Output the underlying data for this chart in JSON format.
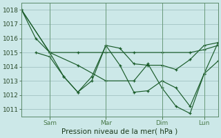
{
  "xlabel": "Pression niveau de la mer( hPa )",
  "background_color": "#cce8e8",
  "grid_color": "#99bbbb",
  "line_color": "#1a5c2a",
  "ylim": [
    1010.5,
    1018.5
  ],
  "yticks": [
    1011,
    1012,
    1013,
    1014,
    1015,
    1016,
    1017,
    1018
  ],
  "xlim": [
    0,
    168
  ],
  "xtick_positions": [
    24,
    72,
    120,
    156
  ],
  "xtick_labels": [
    "Sam",
    "Mar",
    "Dim",
    "Lun"
  ],
  "vline_positions": [
    24,
    72,
    120,
    156
  ],
  "line1_x": [
    0,
    24,
    48,
    72,
    96,
    120,
    144,
    156,
    168
  ],
  "line1_y": [
    1018.0,
    1015.0,
    1015.0,
    1015.0,
    1015.0,
    1015.0,
    1015.0,
    1015.2,
    1015.5
  ],
  "line2_x": [
    0,
    12,
    24,
    36,
    48,
    60,
    72,
    84,
    96,
    108,
    120,
    132,
    144,
    156,
    168
  ],
  "line2_y": [
    1018.0,
    1016.0,
    1015.0,
    1013.3,
    1012.2,
    1013.3,
    1015.5,
    1015.3,
    1014.2,
    1014.1,
    1014.1,
    1013.8,
    1014.5,
    1015.5,
    1015.7
  ],
  "line3_x": [
    12,
    24,
    36,
    48,
    60,
    72,
    84,
    96,
    108,
    120,
    132,
    144,
    156,
    168
  ],
  "line3_y": [
    1015.0,
    1014.7,
    1013.3,
    1012.2,
    1013.0,
    1015.5,
    1014.1,
    1012.2,
    1012.3,
    1013.0,
    1012.5,
    1011.2,
    1013.5,
    1014.4
  ],
  "line4_x": [
    0,
    24,
    48,
    72,
    96,
    108,
    120,
    132,
    144,
    156,
    168
  ],
  "line4_y": [
    1018.0,
    1015.0,
    1014.1,
    1013.0,
    1013.0,
    1014.2,
    1012.5,
    1011.2,
    1010.7,
    1013.5,
    1015.7
  ],
  "marker": "+"
}
